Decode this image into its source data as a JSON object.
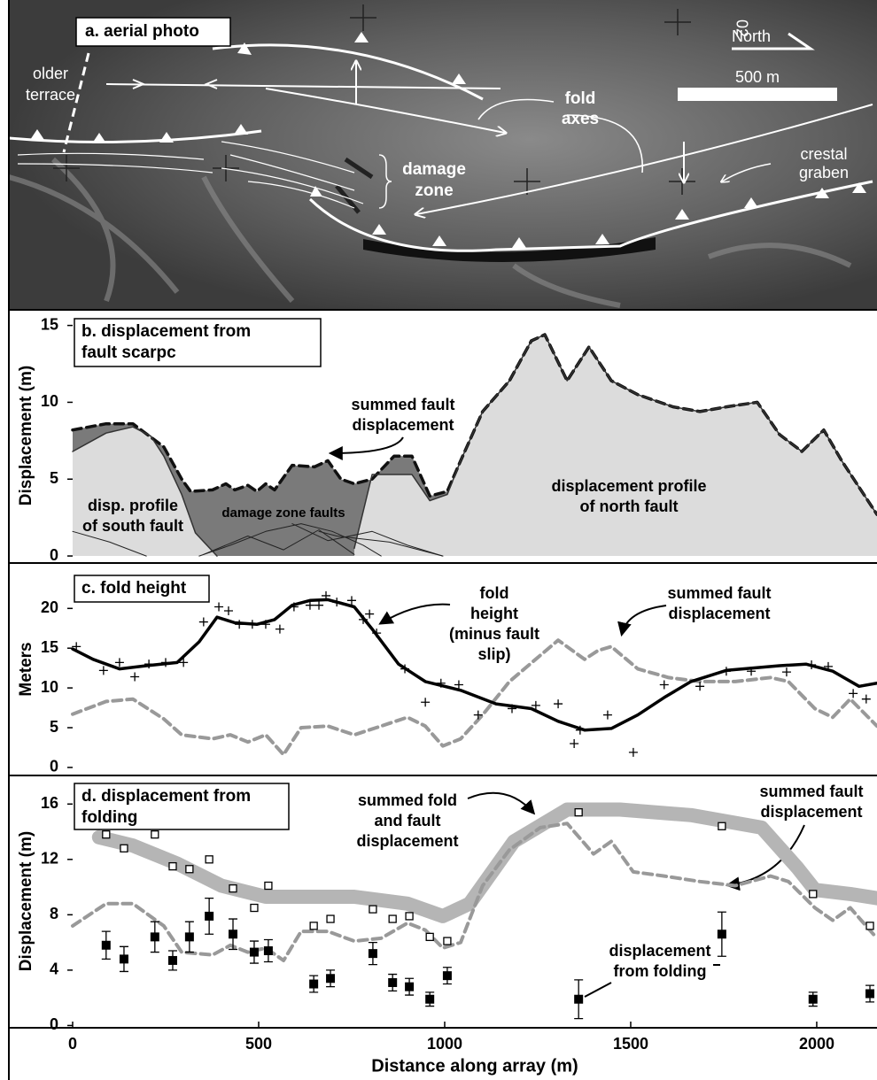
{
  "panel_a": {
    "title": "a. aerial photo",
    "photo_mark": "02",
    "north": "North",
    "scale_bar": "500 m",
    "older_terrace": [
      "older",
      "terrace"
    ],
    "fold_axes": [
      "fold",
      "axes"
    ],
    "damage_zone": [
      "damage",
      "zone"
    ],
    "crestal_graben": [
      "crestal",
      "graben"
    ]
  },
  "chart_data": [
    {
      "type": "area",
      "title": [
        "b. displacement from",
        "fault scarpc"
      ],
      "y_label": "Displacement (m)",
      "xlim": [
        0,
        2162
      ],
      "ylim": [
        -0.4,
        15.9
      ],
      "yticks": [
        0,
        5,
        10,
        15
      ],
      "series": [
        {
          "kind": "area",
          "fill": "#7a7a7a",
          "color": "#111111",
          "line_style": "dashed",
          "width": 3.5,
          "x": [
            0,
            90,
            162,
            245,
            293,
            317,
            376,
            412,
            436,
            471,
            495,
            519,
            543,
            590,
            650,
            686,
            721,
            757,
            805,
            864,
            912,
            960,
            1007,
            1043,
            1102,
            1174,
            1233,
            1269,
            1329,
            1388,
            1448,
            1519,
            1614,
            1686,
            1757,
            1840,
            1900,
            1960,
            2019,
            2067,
            2162
          ],
          "values": [
            8.2,
            8.6,
            8.6,
            7.1,
            5.0,
            4.2,
            4.3,
            4.7,
            4.3,
            4.6,
            4.2,
            4.7,
            4.3,
            5.9,
            5.8,
            6.2,
            5.0,
            4.7,
            5.0,
            6.5,
            6.5,
            3.9,
            4.2,
            6.2,
            9.4,
            11.4,
            14.0,
            14.4,
            11.4,
            13.6,
            11.4,
            10.5,
            9.7,
            9.4,
            9.7,
            10.0,
            7.9,
            6.8,
            8.2,
            6.2,
            2.7
          ]
        },
        {
          "kind": "area",
          "fill": "#dcdcdc",
          "color": "#333333",
          "width": 1.5,
          "x": [
            0,
            90,
            162,
            210,
            245,
            293,
            330,
            388
          ],
          "values": [
            6.8,
            8.0,
            8.4,
            7.8,
            6.5,
            4.0,
            1.5,
            0
          ]
        },
        {
          "kind": "area",
          "fill": "#dcdcdc",
          "color": "#333333",
          "width": 1.5,
          "x": [
            757,
            805,
            912,
            960,
            1007,
            1043,
            1102,
            1174,
            1233,
            1269,
            1329,
            1388,
            1448,
            1519,
            1614,
            1686,
            1757,
            1840,
            1900,
            1960,
            2019,
            2067,
            2162
          ],
          "values": [
            0.5,
            5.3,
            5.3,
            3.6,
            4.0,
            6.2,
            9.4,
            11.4,
            14.0,
            14.4,
            11.4,
            13.6,
            11.4,
            10.5,
            9.7,
            9.4,
            9.7,
            10.0,
            7.9,
            6.8,
            8.2,
            6.2,
            2.7
          ]
        },
        {
          "kind": "line",
          "color": "#222222",
          "width": 1,
          "x": [
            0,
            100,
            198
          ],
          "values": [
            1.6,
            0.9,
            0
          ]
        },
        {
          "kind": "line",
          "color": "#222222",
          "width": 1,
          "x": [
            340,
            424,
            519,
            614,
            698,
            781,
            829
          ],
          "values": [
            0,
            0.7,
            1.6,
            2.1,
            1.6,
            0.7,
            0
          ]
        },
        {
          "kind": "line",
          "color": "#222222",
          "width": 1,
          "x": [
            352,
            471,
            567,
            662,
            757
          ],
          "values": [
            0.1,
            1.3,
            0.4,
            1.7,
            0.1
          ]
        },
        {
          "kind": "line",
          "color": "#222222",
          "width": 1,
          "x": [
            590,
            686,
            805,
            900,
            995
          ],
          "values": [
            2.1,
            1.0,
            1.6,
            0.7,
            0
          ]
        },
        {
          "kind": "line",
          "color": "#222222",
          "width": 1,
          "x": [
            662,
            710,
            852,
            995
          ],
          "values": [
            1.6,
            1.3,
            0.9,
            0
          ]
        }
      ],
      "annotations": [
        {
          "lines": [
            "summed fault",
            "displacement"
          ]
        },
        {
          "lines": [
            "damage zone faults"
          ]
        },
        {
          "lines": [
            "disp. profile",
            "of south fault"
          ]
        },
        {
          "lines": [
            "displacement profile",
            "of north fault"
          ]
        }
      ]
    },
    {
      "type": "line",
      "title": [
        "c. fold height"
      ],
      "y_label": "Meters",
      "xlim": [
        0,
        2162
      ],
      "ylim": [
        -0.9,
        25.6
      ],
      "yticks": [
        0,
        5,
        10,
        15,
        20
      ],
      "series": [
        {
          "kind": "line",
          "color": "#999999",
          "line_style": "dashed",
          "width": 4,
          "x": [
            0,
            90,
            162,
            245,
            293,
            376,
            424,
            471,
            519,
            567,
            614,
            686,
            757,
            829,
            900,
            948,
            995,
            1043,
            1102,
            1174,
            1257,
            1305,
            1376,
            1412,
            1448,
            1519,
            1602,
            1686,
            1781,
            1876,
            1924,
            1995,
            2043,
            2090,
            2162
          ],
          "values": [
            6.7,
            8.3,
            8.6,
            6.1,
            4.1,
            3.6,
            4.1,
            3.2,
            4.1,
            1.6,
            5.0,
            5.2,
            4.1,
            5.2,
            6.3,
            5.2,
            2.7,
            3.6,
            6.6,
            10.8,
            14.1,
            16.0,
            13.6,
            14.7,
            15.2,
            12.4,
            11.3,
            10.8,
            10.8,
            11.3,
            10.8,
            7.4,
            6.3,
            8.6,
            5.2
          ]
        },
        {
          "kind": "line",
          "color": "#000000",
          "width": 3.5,
          "x": [
            0,
            55,
            126,
            198,
            281,
            340,
            388,
            436,
            495,
            543,
            590,
            638,
            686,
            757,
            805,
            876,
            948,
            1043,
            1138,
            1233,
            1305,
            1376,
            1448,
            1519,
            1590,
            1662,
            1757,
            1900,
            1971,
            2043,
            2114,
            2162
          ],
          "values": [
            14.9,
            13.6,
            12.4,
            12.8,
            13.2,
            15.8,
            18.9,
            18.2,
            18.0,
            18.6,
            20.4,
            21.0,
            21.1,
            20.2,
            17.4,
            13.0,
            10.8,
            9.7,
            8.0,
            7.4,
            5.8,
            4.7,
            4.9,
            6.6,
            8.8,
            10.8,
            12.2,
            12.8,
            13.0,
            12.1,
            10.2,
            10.6
          ]
        },
        {
          "kind": "scatter",
          "marker": "plus",
          "color": "#000000",
          "x": [
            10,
            83,
            126,
            167,
            205,
            250,
            298,
            352,
            393,
            419,
            448,
            483,
            519,
            557,
            595,
            638,
            662,
            681,
            710,
            750,
            781,
            798,
            817,
            893,
            948,
            990,
            1038,
            1090,
            1181,
            1245,
            1305,
            1348,
            1364,
            1438,
            1507,
            1590,
            1686,
            1757,
            1824,
            1919,
            1986,
            2031,
            2098,
            2133
          ],
          "values": [
            15.2,
            12.2,
            13.2,
            11.4,
            13.0,
            13.2,
            13.2,
            18.3,
            20.2,
            19.7,
            18.0,
            18.0,
            18.0,
            17.4,
            20.2,
            20.4,
            20.4,
            21.6,
            20.8,
            21.0,
            18.6,
            19.3,
            16.9,
            12.4,
            8.2,
            10.6,
            10.4,
            6.6,
            7.4,
            7.8,
            8.0,
            3.0,
            4.7,
            6.6,
            1.9,
            10.4,
            10.2,
            12.1,
            12.1,
            12.0,
            12.9,
            12.7,
            9.3,
            8.6
          ]
        }
      ],
      "annotations": [
        {
          "lines": [
            "fold",
            "height",
            "(minus fault",
            "slip)"
          ]
        },
        {
          "lines": [
            "summed fault",
            "displacement"
          ]
        }
      ]
    },
    {
      "type": "scatter",
      "title": [
        "d. displacement from",
        "folding"
      ],
      "y_label": "Displacement (m)",
      "x_label": "Distance along array (m)",
      "xlim": [
        0,
        2162
      ],
      "ylim": [
        -0.1,
        18
      ],
      "yticks": [
        0,
        4,
        8,
        12,
        16
      ],
      "xticks": [
        0,
        500,
        1000,
        1500,
        2000
      ],
      "series": [
        {
          "kind": "line",
          "color": "#b5b5b5",
          "width": 16,
          "x": [
            71,
            162,
            281,
            400,
            519,
            757,
            900,
            995,
            1067,
            1186,
            1329,
            1471,
            1662,
            1852,
            1948,
            1995,
            2090,
            2162
          ],
          "values": [
            13.6,
            13.0,
            11.7,
            10.1,
            9.3,
            9.3,
            8.8,
            7.9,
            8.8,
            13.3,
            15.6,
            15.6,
            15.2,
            14.3,
            11.4,
            9.8,
            9.5,
            9.2
          ]
        },
        {
          "kind": "line",
          "color": "#999999",
          "line_style": "dashed",
          "width": 4,
          "x": [
            0,
            90,
            162,
            245,
            293,
            376,
            424,
            471,
            519,
            567,
            614,
            686,
            757,
            829,
            900,
            948,
            995,
            1043,
            1102,
            1174,
            1257,
            1329,
            1400,
            1448,
            1507,
            1590,
            1686,
            1781,
            1876,
            1924,
            1995,
            2043,
            2090,
            2162
          ],
          "values": [
            7.2,
            8.8,
            8.8,
            7.2,
            5.3,
            5.1,
            5.8,
            5.3,
            5.6,
            4.7,
            6.8,
            6.8,
            6.1,
            6.3,
            7.4,
            6.9,
            5.6,
            6.0,
            10.1,
            12.7,
            14.3,
            14.6,
            12.4,
            13.3,
            11.1,
            10.8,
            10.4,
            10.1,
            10.8,
            10.4,
            8.5,
            7.6,
            8.5,
            6.3
          ]
        },
        {
          "kind": "scatter",
          "marker": "open-square",
          "color": "#000000",
          "x": [
            90,
            138,
            221,
            269,
            314,
            367,
            431,
            488,
            526,
            648,
            693,
            807,
            860,
            905,
            960,
            1007,
            1360,
            1745,
            1990,
            2143
          ],
          "values": [
            13.8,
            12.8,
            13.8,
            11.5,
            11.3,
            12.0,
            9.9,
            8.5,
            10.1,
            7.2,
            7.7,
            8.4,
            7.7,
            7.9,
            6.4,
            6.1,
            15.4,
            14.4,
            9.5,
            7.2
          ]
        },
        {
          "kind": "scatter",
          "marker": "filled-square",
          "color": "#000000",
          "x": [
            90,
            138,
            221,
            269,
            314,
            367,
            431,
            488,
            526,
            648,
            693,
            807,
            860,
            905,
            960,
            1007,
            1360,
            1745,
            1990,
            2143
          ],
          "values": [
            5.8,
            4.8,
            6.4,
            4.7,
            6.4,
            7.9,
            6.6,
            5.3,
            5.4,
            3.0,
            3.4,
            5.2,
            3.1,
            2.8,
            1.9,
            3.6,
            1.9,
            6.6,
            1.9,
            2.3
          ],
          "errors": [
            1.0,
            0.9,
            1.1,
            0.7,
            1.1,
            1.3,
            1.1,
            0.8,
            0.8,
            0.6,
            0.6,
            0.8,
            0.6,
            0.6,
            0.5,
            0.6,
            1.4,
            1.6,
            0.5,
            0.6
          ]
        }
      ],
      "annotations": [
        {
          "lines": [
            "summed fold",
            "and fault",
            "displacement"
          ]
        },
        {
          "lines": [
            "summed fault",
            "displacement"
          ]
        },
        {
          "lines": [
            "displacement",
            "from folding"
          ]
        }
      ]
    }
  ]
}
